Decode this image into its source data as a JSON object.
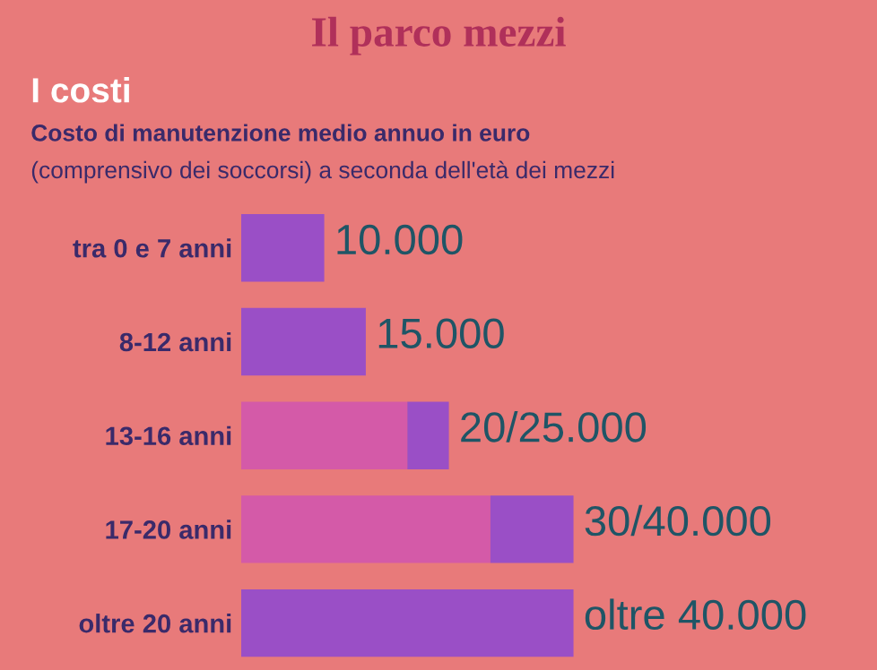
{
  "chart_data": {
    "type": "bar",
    "orientation": "horizontal",
    "stacked": true,
    "xlim": [
      0,
      76000
    ],
    "title": "Il parco mezzi",
    "subtitle": "I costi",
    "annotations": [
      "Costo di manutenzione medio annuo in euro",
      "(comprensivo dei soccorsi) a seconda dell'età dei mezzi"
    ],
    "categories": [
      "tra 0 e 7 anni",
      "8-12 anni",
      "13-16 anni",
      "17-20 anni",
      "oltre 20 anni"
    ],
    "series": [
      {
        "color": "#d45aa8",
        "values": [
          null,
          null,
          20000,
          30000,
          null
        ]
      },
      {
        "color": "#9a4fc6",
        "values": [
          10000,
          15000,
          5000,
          10000,
          40000
        ],
        "value_labels": [
          "10.000",
          "15.000",
          "20/25.000",
          "30/40.000",
          "oltre 40.000"
        ]
      }
    ],
    "grid": false,
    "legend": false
  }
}
